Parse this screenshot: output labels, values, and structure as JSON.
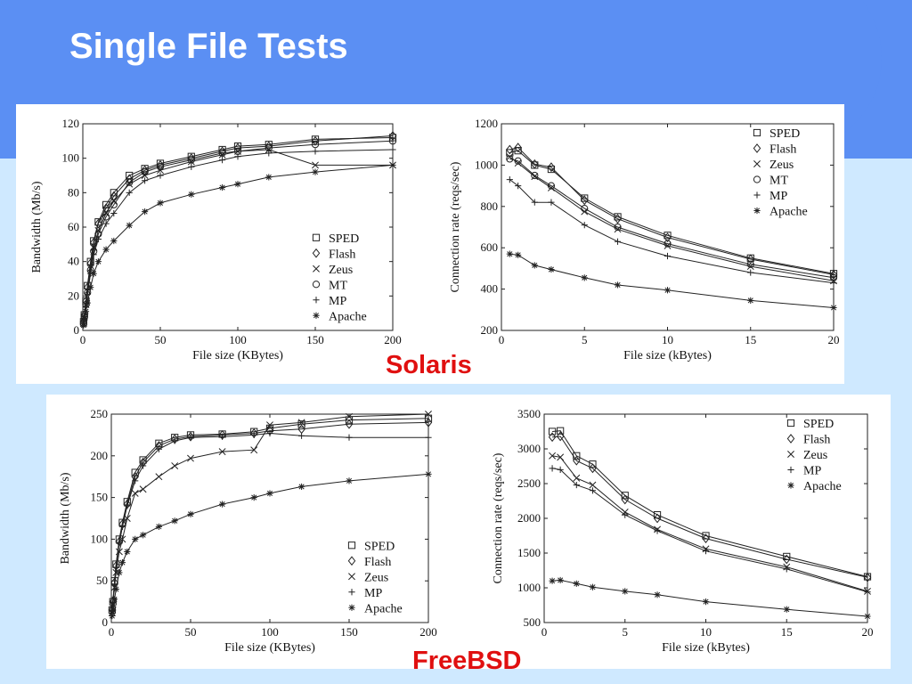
{
  "page": {
    "title": "Single File Tests",
    "panel_labels": [
      "Solaris",
      "FreeBSD"
    ]
  },
  "colors": {
    "band": "#5b8ff3",
    "background": "#cfe9ff",
    "label_red": "#e01010"
  },
  "chart_data": [
    {
      "type": "line",
      "xlabel": "File size (KBytes)",
      "ylabel": "Bandwidth (Mb/s)",
      "xlim": [
        0,
        200
      ],
      "ylim": [
        0,
        120
      ],
      "xticks": [
        0,
        50,
        100,
        150,
        200
      ],
      "yticks": [
        0,
        20,
        40,
        60,
        80,
        100,
        120
      ],
      "legend_position": "bottom-right",
      "x": [
        0.5,
        1,
        2,
        3,
        5,
        7,
        10,
        15,
        20,
        30,
        40,
        50,
        70,
        90,
        100,
        120,
        150,
        200
      ],
      "series": [
        {
          "name": "SPED",
          "marker": "square",
          "values": [
            5,
            9,
            17,
            26,
            40,
            52,
            63,
            73,
            80,
            90,
            94,
            97,
            101,
            105,
            107,
            108,
            111,
            112
          ]
        },
        {
          "name": "Flash",
          "marker": "diamond",
          "values": [
            5,
            9,
            17,
            25,
            39,
            51,
            62,
            71,
            78,
            88,
            93,
            96,
            100,
            104,
            106,
            107,
            110,
            113
          ]
        },
        {
          "name": "Zeus",
          "marker": "x",
          "values": [
            4,
            8,
            15,
            23,
            36,
            48,
            58,
            68,
            75,
            85,
            90,
            93,
            98,
            102,
            104,
            105,
            96,
            96
          ]
        },
        {
          "name": "MT",
          "marker": "circle",
          "values": [
            4,
            8,
            15,
            22,
            35,
            46,
            56,
            66,
            73,
            86,
            92,
            95,
            99,
            103,
            104,
            106,
            108,
            110
          ]
        },
        {
          "name": "MP",
          "marker": "plus",
          "values": [
            4,
            8,
            14,
            21,
            33,
            44,
            53,
            62,
            68,
            80,
            87,
            90,
            95,
            99,
            101,
            103,
            104,
            105
          ]
        },
        {
          "name": "Apache",
          "marker": "star",
          "values": [
            3,
            6,
            11,
            16,
            25,
            33,
            40,
            47,
            52,
            61,
            69,
            74,
            79,
            83,
            85,
            89,
            92,
            96
          ]
        }
      ]
    },
    {
      "type": "line",
      "xlabel": "File size (kBytes)",
      "ylabel": "Connection rate (reqs/sec)",
      "xlim": [
        0,
        20
      ],
      "ylim": [
        200,
        1200
      ],
      "xticks": [
        0,
        5,
        10,
        15,
        20
      ],
      "yticks": [
        200,
        400,
        600,
        800,
        1000,
        1200
      ],
      "legend_position": "top-right",
      "x": [
        0.5,
        1,
        2,
        3,
        5,
        7,
        10,
        15,
        20
      ],
      "series": [
        {
          "name": "SPED",
          "marker": "square",
          "values": [
            1060,
            1070,
            1000,
            980,
            840,
            750,
            660,
            550,
            475
          ]
        },
        {
          "name": "Flash",
          "marker": "diamond",
          "values": [
            1075,
            1085,
            1005,
            990,
            830,
            740,
            650,
            545,
            470
          ]
        },
        {
          "name": "Zeus",
          "marker": "x",
          "values": [
            1040,
            1010,
            945,
            890,
            775,
            690,
            610,
            510,
            440
          ]
        },
        {
          "name": "MT",
          "marker": "circle",
          "values": [
            1030,
            1020,
            950,
            900,
            790,
            700,
            620,
            520,
            455
          ]
        },
        {
          "name": "MP",
          "marker": "plus",
          "values": [
            930,
            900,
            820,
            820,
            710,
            630,
            560,
            480,
            430
          ]
        },
        {
          "name": "Apache",
          "marker": "star",
          "values": [
            570,
            565,
            515,
            495,
            455,
            420,
            395,
            345,
            310
          ]
        }
      ]
    },
    {
      "type": "line",
      "xlabel": "File size (KBytes)",
      "ylabel": "Bandwidth (Mb/s)",
      "xlim": [
        0,
        200
      ],
      "ylim": [
        0,
        250
      ],
      "xticks": [
        0,
        50,
        100,
        150,
        200
      ],
      "yticks": [
        0,
        50,
        100,
        150,
        200,
        250
      ],
      "legend_position": "bottom-right",
      "x": [
        0.5,
        1,
        2,
        3,
        5,
        7,
        10,
        15,
        20,
        30,
        40,
        50,
        70,
        90,
        100,
        120,
        150,
        200
      ],
      "series": [
        {
          "name": "SPED",
          "marker": "square",
          "values": [
            15,
            25,
            50,
            70,
            100,
            120,
            145,
            180,
            195,
            215,
            222,
            225,
            226,
            229,
            233,
            238,
            243,
            245
          ]
        },
        {
          "name": "Flash",
          "marker": "diamond",
          "values": [
            15,
            25,
            48,
            68,
            97,
            118,
            142,
            175,
            192,
            212,
            220,
            223,
            225,
            227,
            230,
            232,
            238,
            240
          ]
        },
        {
          "name": "Zeus",
          "marker": "x",
          "values": [
            12,
            22,
            42,
            60,
            85,
            100,
            125,
            155,
            160,
            175,
            188,
            197,
            205,
            207,
            237,
            240,
            247,
            250
          ]
        },
        {
          "name": "MP",
          "marker": "plus",
          "values": [
            14,
            24,
            46,
            66,
            95,
            115,
            140,
            170,
            188,
            208,
            218,
            222,
            223,
            225,
            227,
            224,
            222,
            222
          ]
        },
        {
          "name": "Apache",
          "marker": "star",
          "values": [
            8,
            15,
            28,
            40,
            60,
            72,
            85,
            100,
            105,
            115,
            122,
            130,
            142,
            150,
            155,
            163,
            170,
            178
          ]
        }
      ]
    },
    {
      "type": "line",
      "xlabel": "File size (kBytes)",
      "ylabel": "Connection rate (reqs/sec)",
      "xlim": [
        0,
        20
      ],
      "ylim": [
        500,
        3500
      ],
      "xticks": [
        0,
        5,
        10,
        15,
        20
      ],
      "yticks": [
        500,
        1000,
        1500,
        2000,
        2500,
        3000,
        3500
      ],
      "legend_position": "top-right",
      "x": [
        0.5,
        1,
        2,
        3,
        5,
        7,
        10,
        15,
        20
      ],
      "series": [
        {
          "name": "SPED",
          "marker": "square",
          "values": [
            3250,
            3260,
            2900,
            2780,
            2330,
            2050,
            1750,
            1450,
            1160
          ]
        },
        {
          "name": "Flash",
          "marker": "diamond",
          "values": [
            3170,
            3180,
            2830,
            2720,
            2270,
            2000,
            1710,
            1410,
            1150
          ]
        },
        {
          "name": "Zeus",
          "marker": "x",
          "values": [
            2900,
            2880,
            2580,
            2480,
            2090,
            1840,
            1560,
            1300,
            950
          ]
        },
        {
          "name": "MP",
          "marker": "plus",
          "values": [
            2720,
            2700,
            2480,
            2400,
            2050,
            1820,
            1530,
            1270,
            940
          ]
        },
        {
          "name": "Apache",
          "marker": "star",
          "values": [
            1100,
            1110,
            1060,
            1010,
            950,
            900,
            800,
            690,
            590
          ]
        }
      ]
    }
  ]
}
